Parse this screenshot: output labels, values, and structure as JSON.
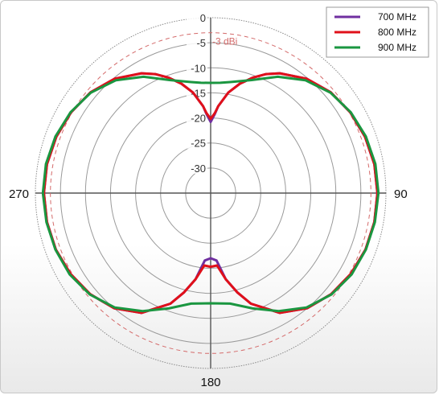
{
  "chart_data": {
    "type": "polar",
    "radial_unit": "dBi",
    "radial_ticks": [
      "0",
      "-5",
      "-10",
      "-15",
      "-20",
      "-25",
      "-30"
    ],
    "radial_range": [
      -35,
      0
    ],
    "angle_labels": [
      "90",
      "180",
      "270"
    ],
    "angle_direction": "clockwise",
    "angle_zero": "top",
    "reference_circle": {
      "value": -3,
      "label": "-3 dBi",
      "color": "#d46a6a"
    },
    "legend_position": "top-right",
    "series": [
      {
        "name": "700 MHz",
        "color": "#7030a0",
        "angles": [
          0,
          3,
          5,
          10,
          15,
          20,
          25,
          30,
          40,
          50,
          60,
          70,
          80,
          90,
          100,
          110,
          120,
          130,
          140,
          150,
          160,
          165,
          170,
          175,
          180,
          185,
          190,
          195,
          200,
          210,
          220,
          230,
          240,
          250,
          260,
          270,
          280,
          290,
          300,
          310,
          320,
          330,
          335,
          340,
          345,
          350,
          355,
          357
        ],
        "values": [
          -20.8,
          -19.2,
          -17.6,
          -14.6,
          -12.4,
          -10.5,
          -8.8,
          -7.4,
          -5.2,
          -3.7,
          -2.8,
          -2.2,
          -1.8,
          -1.7,
          -1.8,
          -2.1,
          -2.7,
          -3.6,
          -5.0,
          -7.4,
          -11.5,
          -14.5,
          -17.5,
          -21.5,
          -22.0,
          -21.5,
          -17.5,
          -14.5,
          -11.5,
          -7.4,
          -5.0,
          -3.6,
          -2.7,
          -2.1,
          -1.8,
          -1.7,
          -1.8,
          -2.2,
          -2.8,
          -3.7,
          -5.2,
          -7.4,
          -8.8,
          -10.5,
          -12.4,
          -14.6,
          -17.6,
          -19.2
        ]
      },
      {
        "name": "800 MHz",
        "color": "#e0101a",
        "angles": [
          0,
          3,
          5,
          10,
          15,
          20,
          25,
          30,
          40,
          50,
          60,
          70,
          80,
          90,
          100,
          110,
          120,
          130,
          140,
          150,
          160,
          165,
          170,
          175,
          180,
          185,
          190,
          195,
          200,
          210,
          220,
          230,
          240,
          250,
          260,
          270,
          280,
          290,
          300,
          310,
          320,
          330,
          335,
          340,
          345,
          350,
          355,
          357
        ],
        "values": [
          -20.2,
          -19.0,
          -17.6,
          -14.6,
          -12.4,
          -10.5,
          -8.8,
          -7.4,
          -5.2,
          -3.7,
          -2.8,
          -2.2,
          -1.8,
          -1.7,
          -1.8,
          -2.1,
          -2.7,
          -3.6,
          -5.0,
          -7.4,
          -11.5,
          -14.5,
          -17.5,
          -20.5,
          -20.3,
          -20.5,
          -17.5,
          -14.5,
          -11.5,
          -7.4,
          -5.0,
          -3.6,
          -2.7,
          -2.1,
          -1.8,
          -1.7,
          -1.8,
          -2.2,
          -2.8,
          -3.7,
          -5.2,
          -7.4,
          -8.8,
          -10.5,
          -12.4,
          -14.6,
          -17.6,
          -19.0
        ]
      },
      {
        "name": "900 MHz",
        "color": "#1a9640",
        "angles": [
          0,
          5,
          10,
          20,
          30,
          40,
          50,
          60,
          70,
          80,
          90,
          100,
          110,
          120,
          130,
          140,
          150,
          160,
          170,
          180,
          190,
          200,
          210,
          220,
          230,
          240,
          250,
          260,
          270,
          280,
          290,
          300,
          310,
          320,
          330,
          340,
          350,
          355
        ],
        "values": [
          -13.0,
          -12.9,
          -12.5,
          -11.0,
          -8.2,
          -5.6,
          -3.8,
          -2.7,
          -2.0,
          -1.6,
          -1.5,
          -1.7,
          -2.0,
          -2.5,
          -3.5,
          -5.2,
          -7.8,
          -10.5,
          -12.6,
          -13.0,
          -12.6,
          -10.5,
          -7.8,
          -5.2,
          -3.5,
          -2.5,
          -2.0,
          -1.7,
          -1.5,
          -1.6,
          -2.0,
          -2.7,
          -3.8,
          -5.6,
          -8.2,
          -11.0,
          -12.5,
          -12.9
        ]
      }
    ]
  }
}
